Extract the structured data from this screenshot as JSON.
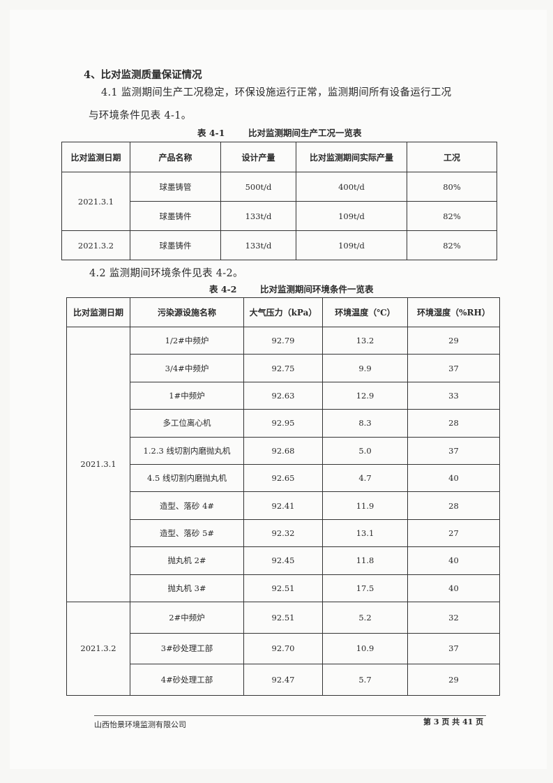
{
  "section_heading": "4、比对监测质量保证情况",
  "para1_line1": "4.1 监测期间生产工况稳定，环保设施运行正常，监测期间所有设备运行工况",
  "para1_line2": "与环境条件见表 4-1。",
  "table1": {
    "caption_no": "表 4-1",
    "caption_title": "比对监测期间生产工况一览表",
    "headers": [
      "比对监测日期",
      "产品名称",
      "设计产量",
      "比对监测期间实际产量",
      "工况"
    ],
    "groups": [
      {
        "date": "2021.3.1",
        "rows": [
          [
            "球墨铸管",
            "500t/d",
            "400t/d",
            "80%"
          ],
          [
            "球墨铸件",
            "133t/d",
            "109t/d",
            "82%"
          ]
        ]
      },
      {
        "date": "2021.3.2",
        "rows": [
          [
            "球墨铸件",
            "133t/d",
            "109t/d",
            "82%"
          ]
        ]
      }
    ]
  },
  "para2": "4.2 监测期间环境条件见表 4-2。",
  "table2": {
    "caption_no": "表 4-2",
    "caption_title": "比对监测期间环境条件一览表",
    "headers": [
      "比对监测日期",
      "污染源设施名称",
      "大气压力（kPa）",
      "环境温度（℃）",
      "环境湿度（%RH）"
    ],
    "groups": [
      {
        "date": "2021.3.1",
        "rows": [
          [
            "1/2#中频炉",
            "92.79",
            "13.2",
            "29"
          ],
          [
            "3/4#中频炉",
            "92.75",
            "9.9",
            "37"
          ],
          [
            "1#中频炉",
            "92.63",
            "12.9",
            "33"
          ],
          [
            "多工位离心机",
            "92.95",
            "8.3",
            "28"
          ],
          [
            "1.2.3 线切割内磨抛丸机",
            "92.68",
            "5.0",
            "37"
          ],
          [
            "4.5 线切割内磨抛丸机",
            "92.65",
            "4.7",
            "40"
          ],
          [
            "造型、落砂 4#",
            "92.41",
            "11.9",
            "28"
          ],
          [
            "造型、落砂 5#",
            "92.32",
            "13.1",
            "27"
          ],
          [
            "抛丸机 2#",
            "92.45",
            "11.8",
            "40"
          ],
          [
            "抛丸机 3#",
            "92.51",
            "17.5",
            "40"
          ]
        ]
      },
      {
        "date": "2021.3.2",
        "rows": [
          [
            "2#中频炉",
            "92.51",
            "5.2",
            "32"
          ],
          [
            "3#砂处理工部",
            "92.70",
            "10.9",
            "37"
          ],
          [
            "4#砂处理工部",
            "92.47",
            "5.7",
            "29"
          ]
        ]
      }
    ]
  },
  "footer": {
    "company": "山西怡景环境监测有限公司",
    "page": "第 3 页 共 41 页"
  }
}
